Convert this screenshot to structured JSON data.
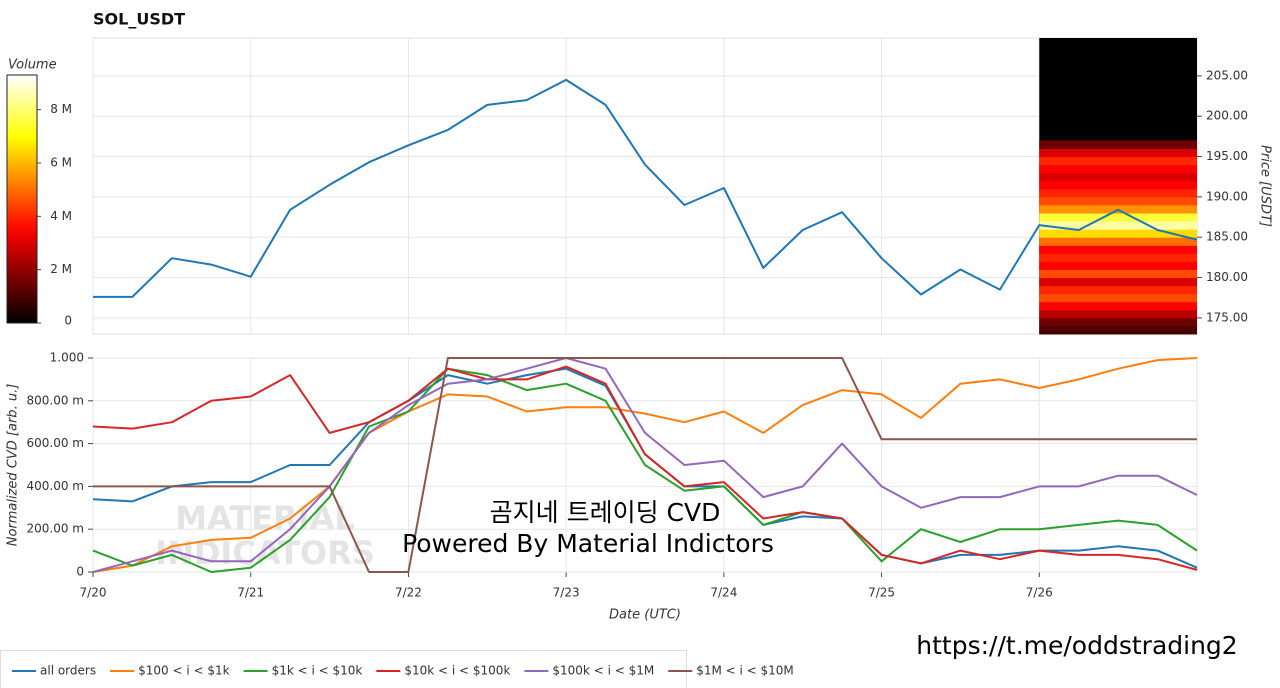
{
  "chart_data": [
    {
      "type": "line",
      "title": "SOL_USDT",
      "ylabel": "Price [USDT]",
      "xlim": [
        0,
        7
      ],
      "ylim": [
        173,
        209.7
      ],
      "yticks": [
        {
          "value": 175,
          "label": "175.00"
        },
        {
          "value": 180,
          "label": "180.00"
        },
        {
          "value": 185,
          "label": "185.00"
        },
        {
          "value": 190,
          "label": "190.00"
        },
        {
          "value": 195,
          "label": "195.00"
        },
        {
          "value": 200,
          "label": "200.00"
        },
        {
          "value": 205,
          "label": "205.00"
        }
      ],
      "x": [
        0,
        0.25,
        0.5,
        0.75,
        1,
        1.25,
        1.5,
        1.75,
        2,
        2.25,
        2.5,
        2.75,
        3,
        3.25,
        3.5,
        3.75,
        4,
        4.25,
        4.5,
        4.75,
        5,
        5.25,
        5.5,
        5.75,
        6,
        6.25,
        6.5,
        6.75,
        7
      ],
      "series": [
        {
          "color": "#1f77b4",
          "values": [
            177.6,
            177.6,
            182.4,
            181.6,
            180.1,
            188.4,
            191.5,
            194.3,
            196.4,
            198.3,
            201.4,
            202.0,
            204.5,
            201.4,
            194.0,
            189.0,
            191.1,
            181.2,
            185.9,
            188.1,
            182.4,
            177.9,
            181.0,
            178.5,
            186.5,
            185.9,
            188.4,
            185.9,
            184.7
          ]
        }
      ],
      "heatmap": {
        "x_range": [
          6,
          7
        ],
        "bins": [
          173,
          174,
          175,
          176,
          177,
          178,
          179,
          180,
          181,
          182,
          183,
          184,
          185,
          186,
          187,
          188,
          189,
          190,
          191,
          192,
          193,
          194,
          195,
          196,
          197
        ],
        "values": [
          1000000,
          1500000,
          2500000,
          3500000,
          4500000,
          4000000,
          3000000,
          4500000,
          3500000,
          4000000,
          3500000,
          5000000,
          6500000,
          8500000,
          7500000,
          5500000,
          4500000,
          4000000,
          3500000,
          3000000,
          3500000,
          4000000,
          3000000,
          1500000
        ]
      },
      "colorbar": {
        "label": "Volume",
        "clim": [
          0,
          9300000
        ],
        "ticks": [
          0,
          {
            "value": 2000000,
            "label": "2 M"
          },
          {
            "value": 4000000,
            "label": "4 M"
          },
          {
            "value": 6000000,
            "label": "6 M"
          },
          {
            "value": 8000000,
            "label": "8 M"
          }
        ]
      }
    },
    {
      "type": "line",
      "xlabel": "Date (UTC)",
      "ylabel": "Normalized CVD [arb. u.]",
      "xlim": [
        0,
        7
      ],
      "ylim": [
        0,
        1
      ],
      "xticks": [
        {
          "value": 0,
          "label": "7/20"
        },
        {
          "value": 1,
          "label": "7/21"
        },
        {
          "value": 2,
          "label": "7/22"
        },
        {
          "value": 3,
          "label": "7/23"
        },
        {
          "value": 4,
          "label": "7/24"
        },
        {
          "value": 5,
          "label": "7/25"
        },
        {
          "value": 6,
          "label": "7/26"
        }
      ],
      "yticks": [
        0,
        {
          "value": 0.2,
          "label": "200.00 m"
        },
        {
          "value": 0.4,
          "label": "400.00 m"
        },
        {
          "value": 0.6,
          "label": "600.00 m"
        },
        {
          "value": 0.8,
          "label": "800.00 m"
        },
        {
          "value": 1,
          "label": "1.000"
        }
      ],
      "x": [
        0,
        0.25,
        0.5,
        0.75,
        1,
        1.25,
        1.5,
        1.75,
        2,
        2.25,
        2.5,
        2.75,
        3,
        3.25,
        3.5,
        3.75,
        4,
        4.25,
        4.5,
        4.75,
        5,
        5.25,
        5.5,
        5.75,
        6,
        6.25,
        6.5,
        6.75,
        7
      ],
      "series": [
        {
          "name": "all orders",
          "color": "#1f77b4",
          "values": [
            0.34,
            0.33,
            0.4,
            0.42,
            0.42,
            0.5,
            0.5,
            0.7,
            0.8,
            0.92,
            0.88,
            0.92,
            0.95,
            0.87,
            0.55,
            0.4,
            0.4,
            0.22,
            0.26,
            0.25,
            0.08,
            0.04,
            0.08,
            0.08,
            0.1,
            0.1,
            0.12,
            0.1,
            0.02
          ]
        },
        {
          "name": "$100 < i < $1k",
          "color": "#ff7f0e",
          "values": [
            0.0,
            0.03,
            0.12,
            0.15,
            0.16,
            0.25,
            0.4,
            0.65,
            0.75,
            0.83,
            0.82,
            0.75,
            0.77,
            0.77,
            0.74,
            0.7,
            0.75,
            0.65,
            0.78,
            0.85,
            0.83,
            0.72,
            0.88,
            0.9,
            0.86,
            0.9,
            0.95,
            0.99,
            1.0
          ]
        },
        {
          "name": "$1k < i < $10k",
          "color": "#2ca02c",
          "values": [
            0.1,
            0.03,
            0.08,
            0.0,
            0.02,
            0.15,
            0.35,
            0.68,
            0.75,
            0.95,
            0.92,
            0.85,
            0.88,
            0.8,
            0.5,
            0.38,
            0.4,
            0.22,
            0.28,
            0.25,
            0.05,
            0.2,
            0.14,
            0.2,
            0.2,
            0.22,
            0.24,
            0.22,
            0.1
          ]
        },
        {
          "name": "$10k < i < $100k",
          "color": "#d62728",
          "values": [
            0.68,
            0.67,
            0.7,
            0.8,
            0.82,
            0.92,
            0.65,
            0.7,
            0.8,
            0.95,
            0.9,
            0.9,
            0.96,
            0.88,
            0.55,
            0.4,
            0.42,
            0.25,
            0.28,
            0.25,
            0.08,
            0.04,
            0.1,
            0.06,
            0.1,
            0.08,
            0.08,
            0.06,
            0.01
          ]
        },
        {
          "name": "$100k < i < $1M",
          "color": "#9467bd",
          "values": [
            0.0,
            0.05,
            0.1,
            0.05,
            0.05,
            0.2,
            0.4,
            0.65,
            0.78,
            0.88,
            0.9,
            0.95,
            1.0,
            0.95,
            0.65,
            0.5,
            0.52,
            0.35,
            0.4,
            0.6,
            0.4,
            0.3,
            0.35,
            0.35,
            0.4,
            0.4,
            0.45,
            0.45,
            0.36
          ]
        },
        {
          "name": "$1M < i < $10M",
          "color": "#8c564b",
          "values": [
            0.4,
            0.4,
            0.4,
            0.4,
            0.4,
            0.4,
            0.4,
            0.0,
            0.0,
            1.0,
            1.0,
            1.0,
            1.0,
            1.0,
            1.0,
            1.0,
            1.0,
            1.0,
            1.0,
            1.0,
            0.62,
            0.62,
            0.62,
            0.62,
            0.62,
            0.62,
            0.62,
            0.62,
            0.62
          ]
        }
      ]
    }
  ],
  "annotations": {
    "watermark": [
      "MATERIAL",
      "INDICATORS"
    ],
    "caption": "곰지네 트레이딩 CVD",
    "credit": "Powered By Material Indictors",
    "link": "https://t.me/oddstrading2"
  }
}
